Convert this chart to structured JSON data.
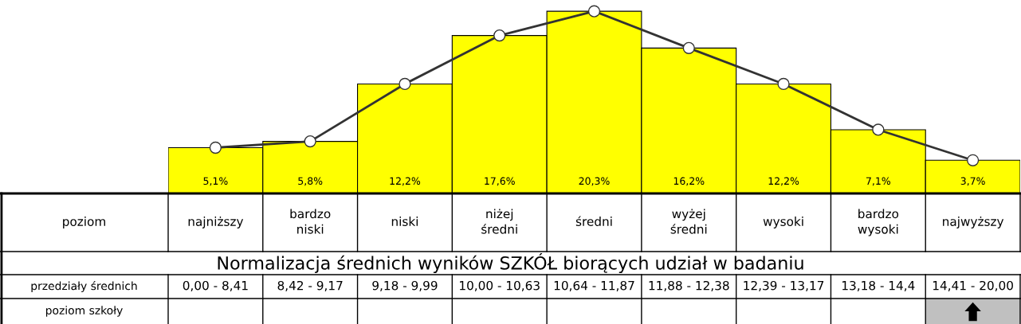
{
  "chart_data": {
    "type": "bar",
    "title": "Normalizacja średnich wyników SZKÓŁ biorących udział w badaniu",
    "categories": [
      "najniższy",
      "bardzo niski",
      "niski",
      "niżej średni",
      "średni",
      "wyżej średni",
      "wysoki",
      "bardzo wysoki",
      "najwyższy"
    ],
    "series": [
      {
        "color": "#ffff00",
        "values": [
          5.1,
          5.8,
          12.2,
          17.6,
          20.3,
          16.2,
          12.2,
          7.1,
          3.7
        ],
        "value_labels": [
          "5,1%",
          "5,8%",
          "12,2%",
          "17,6%",
          "20,3%",
          "16,2%",
          "12,2%",
          "7,1%",
          "3,7%"
        ]
      },
      {
        "type": "line",
        "color": "#333333",
        "marker": "circle",
        "values": [
          5.1,
          5.8,
          12.2,
          17.6,
          20.3,
          16.2,
          12.2,
          7.1,
          3.7
        ]
      }
    ],
    "annotations": [
      "poziom",
      "przedziały średnich",
      "poziom szkoły",
      "0,00 - 8,41",
      "8,42 - 9,17",
      "9,18 - 9,99",
      "10,00 - 10,63",
      "10,64 - 11,87",
      "11,88 - 12,38",
      "12,39 - 13,17",
      "13,18 - 14,4",
      "14,41 - 20,00"
    ],
    "legend": false
  }
}
